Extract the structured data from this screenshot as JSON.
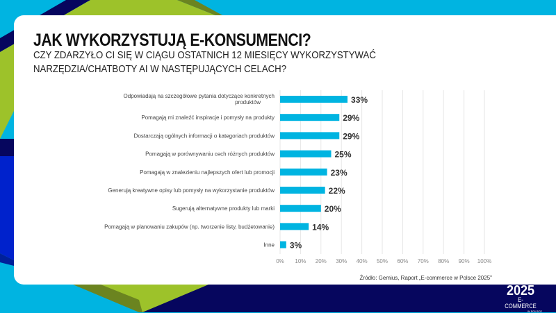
{
  "header": {
    "title": "JAK WYKORZYSTUJĄ E-KONSUMENCI?",
    "subtitle": "CZY ZDARZYŁO CI SIĘ W CIĄGU OSTATNICH 12 MIESIĘCY WYKORZYSTYWAĆ NARZĘDZIA/CHATBOTY AI W NASTĘPUJĄCYCH CELACH?"
  },
  "colors": {
    "bar": "#00b4e1",
    "navy": "#06065e",
    "green": "#9dc22a",
    "olive": "#6b8420",
    "cyan": "#00b4e1",
    "blue": "#0022cc"
  },
  "chart_data": {
    "type": "bar",
    "orientation": "horizontal",
    "categories": [
      "Odpowiadają na szczegółowe pytania dotyczące konkretnych produktów",
      "Pomagają mi znaleźć inspiracje i pomysły na produkty",
      "Dostarczają ogólnych informacji o kategoriach produktów",
      "Pomagają w porównywaniu cech różnych produktów",
      "Pomagają w znalezieniu najlepszych ofert lub promocji",
      "Generują kreatywne opisy lub pomysły na wykorzystanie produktów",
      "Sugerują alternatywne produkty lub marki",
      "Pomagają w planowaniu zakupów (np. tworzenie listy, budżetowanie)",
      "Inne"
    ],
    "values": [
      33,
      29,
      29,
      25,
      23,
      22,
      20,
      14,
      3
    ],
    "data_labels": [
      "33%",
      "29%",
      "29%",
      "25%",
      "23%",
      "22%",
      "20%",
      "14%",
      "3%"
    ],
    "xlim": [
      0,
      100
    ],
    "xticks": [
      "0%",
      "10%",
      "20%",
      "30%",
      "40%",
      "50%",
      "60%",
      "70%",
      "80%",
      "90%",
      "100%"
    ],
    "grid": true
  },
  "footer": {
    "source": "Źródło: Gemius, Raport „E-commerce w Polsce 2025\"",
    "logo_year": "2025",
    "logo_name": "E-COMMERCE",
    "logo_sub": "W POLSCE"
  }
}
